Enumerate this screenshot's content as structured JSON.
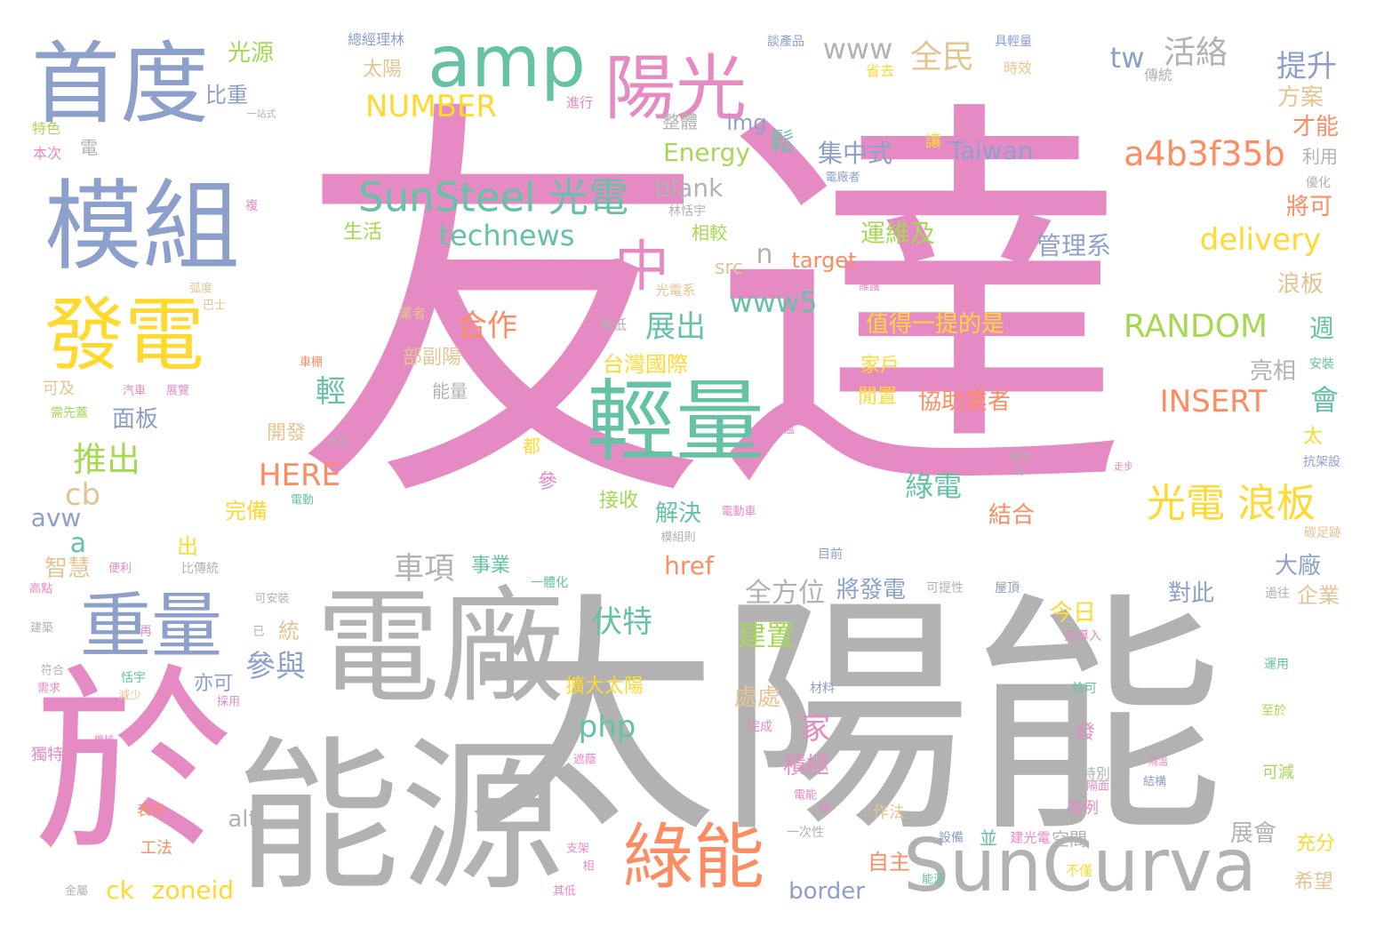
{
  "words": [
    {
      "text": "友達",
      "color": "#e68ac3",
      "orientation": "horizontal"
    },
    {
      "text": "太陽能",
      "color": "#b2b2b2",
      "orientation": "horizontal"
    },
    {
      "text": "能源",
      "color": "#b2b2b2",
      "orientation": "horizontal"
    },
    {
      "text": "電廠",
      "color": "#b2b2b2",
      "orientation": "horizontal"
    },
    {
      "text": "於",
      "color": "#e68ac3",
      "orientation": "horizontal"
    },
    {
      "text": "首度",
      "color": "#8da0cb",
      "orientation": "horizontal"
    },
    {
      "text": "模組",
      "color": "#8da0cb",
      "orientation": "horizontal"
    },
    {
      "text": "amp",
      "color": "#66c2a5",
      "orientation": "horizontal"
    },
    {
      "text": "輕量",
      "color": "#66c2a5",
      "orientation": "horizontal"
    },
    {
      "text": "陽光",
      "color": "#e68ac3",
      "orientation": "horizontal"
    },
    {
      "text": "SunCurva",
      "color": "#b2b2b2",
      "orientation": "horizontal"
    },
    {
      "text": "發電",
      "color": "#ffd92f",
      "orientation": "horizontal"
    },
    {
      "text": "重量",
      "color": "#8da0cb",
      "orientation": "horizontal"
    },
    {
      "text": "綠能",
      "color": "#fc8d62",
      "orientation": "horizontal"
    },
    {
      "text": "中",
      "color": "#e68ac3",
      "orientation": "horizontal"
    },
    {
      "text": "SunSteel 光電",
      "color": "#66c2a5",
      "orientation": "horizontal"
    },
    {
      "text": "a4b3f35b",
      "color": "#fc8d62",
      "orientation": "horizontal"
    },
    {
      "text": "光電 浪板",
      "color": "#ffd92f",
      "orientation": "horizontal"
    },
    {
      "text": "RANDOM",
      "color": "#a6d854",
      "orientation": "horizontal"
    },
    {
      "text": "INSERT",
      "color": "#fc8d62",
      "orientation": "horizontal"
    },
    {
      "text": "NUMBER",
      "color": "#ffd92f",
      "orientation": "horizontal"
    },
    {
      "text": "technews",
      "color": "#66c2a5",
      "orientation": "horizontal"
    },
    {
      "text": "delivery",
      "color": "#ffd92f",
      "orientation": "horizontal"
    },
    {
      "text": "www5",
      "color": "#66c2a5",
      "orientation": "horizontal"
    },
    {
      "text": "www",
      "color": "#b2b2b2",
      "orientation": "horizontal"
    },
    {
      "text": "全民",
      "color": "#e5c494",
      "orientation": "horizontal"
    },
    {
      "text": "活絡",
      "color": "#b2b2b2",
      "orientation": "horizontal"
    },
    {
      "text": "提升",
      "color": "#8da0cb",
      "orientation": "horizontal"
    },
    {
      "text": "tw",
      "color": "#8da0cb",
      "orientation": "horizontal"
    },
    {
      "text": "方案",
      "color": "#e5c494",
      "orientation": "horizontal"
    },
    {
      "text": "Taiwan",
      "color": "#8da0cb",
      "orientation": "horizontal"
    },
    {
      "text": "集中式",
      "color": "#8da0cb",
      "orientation": "horizontal"
    },
    {
      "text": "Energy",
      "color": "#a6d854",
      "orientation": "horizontal"
    },
    {
      "text": "img",
      "color": "#8da0cb",
      "orientation": "horizontal"
    },
    {
      "text": "blank",
      "color": "#b2b2b2",
      "orientation": "horizontal"
    },
    {
      "text": "才能",
      "color": "#fc8d62",
      "orientation": "horizontal"
    },
    {
      "text": "利用",
      "color": "#b2b2b2",
      "orientation": "horizontal"
    },
    {
      "text": "將可",
      "color": "#fc8d62",
      "orientation": "horizontal"
    },
    {
      "text": "運維及",
      "color": "#a6d854",
      "orientation": "horizontal"
    },
    {
      "text": "管理系",
      "color": "#8da0cb",
      "orientation": "horizontal"
    },
    {
      "text": "target",
      "color": "#fc8d62",
      "orientation": "horizontal"
    },
    {
      "text": "浪板",
      "color": "#e5c494",
      "orientation": "horizontal"
    },
    {
      "text": "值得一提的是",
      "color": "#ffd92f",
      "orientation": "horizontal"
    },
    {
      "text": "週",
      "color": "#66c2a5",
      "orientation": "horizontal"
    },
    {
      "text": "亮相",
      "color": "#b2b2b2",
      "orientation": "horizontal"
    },
    {
      "text": "會",
      "color": "#66c2a5",
      "orientation": "horizontal"
    },
    {
      "text": "協助業者",
      "color": "#fc8d62",
      "orientation": "horizontal"
    },
    {
      "text": "家戶",
      "color": "#ffd92f",
      "orientation": "horizontal"
    },
    {
      "text": "閒置",
      "color": "#ffd92f",
      "orientation": "horizontal"
    },
    {
      "text": "太",
      "color": "#ffd92f",
      "orientation": "horizontal"
    },
    {
      "text": "綠電",
      "color": "#66c2a5",
      "orientation": "horizontal"
    },
    {
      "text": "結合",
      "color": "#fc8d62",
      "orientation": "horizontal"
    },
    {
      "text": "大廠",
      "color": "#8da0cb",
      "orientation": "horizontal"
    },
    {
      "text": "對此",
      "color": "#8da0cb",
      "orientation": "horizontal"
    },
    {
      "text": "今日",
      "color": "#ffd92f",
      "orientation": "horizontal"
    },
    {
      "text": "企業",
      "color": "#e5c494",
      "orientation": "horizontal"
    },
    {
      "text": "建置",
      "color": "#a6d854",
      "orientation": "horizontal"
    },
    {
      "text": "全方位",
      "color": "#b2b2b2",
      "orientation": "horizontal"
    },
    {
      "text": "將發電",
      "color": "#8da0cb",
      "orientation": "horizontal"
    },
    {
      "text": "伏特",
      "color": "#66c2a5",
      "orientation": "horizontal"
    },
    {
      "text": "處處",
      "color": "#e5c494",
      "orientation": "horizontal"
    },
    {
      "text": "積極",
      "color": "#e68ac3",
      "orientation": "horizontal"
    },
    {
      "text": "家",
      "color": "#e68ac3",
      "orientation": "horizontal"
    },
    {
      "text": "php",
      "color": "#66c2a5",
      "orientation": "horizontal"
    },
    {
      "text": "車項",
      "color": "#b2b2b2",
      "orientation": "horizontal"
    },
    {
      "text": "事業",
      "color": "#66c2a5",
      "orientation": "horizontal"
    },
    {
      "text": "href",
      "color": "#fc8d62",
      "orientation": "horizontal"
    },
    {
      "text": "解決",
      "color": "#66c2a5",
      "orientation": "horizontal"
    },
    {
      "text": "展出",
      "color": "#66c2a5",
      "orientation": "horizontal"
    },
    {
      "text": "台灣國際",
      "color": "#ffd92f",
      "orientation": "horizontal"
    },
    {
      "text": "合作",
      "color": "#fc8d62",
      "orientation": "horizontal"
    },
    {
      "text": "部副陽",
      "color": "#e5c494",
      "orientation": "horizontal"
    },
    {
      "text": "能量",
      "color": "#b2b2b2",
      "orientation": "horizontal"
    },
    {
      "text": "輕",
      "color": "#66c2a5",
      "orientation": "horizontal"
    },
    {
      "text": "鬆",
      "color": "#66c2a5",
      "orientation": "horizontal"
    },
    {
      "text": "參與",
      "color": "#8da0cb",
      "orientation": "horizontal"
    },
    {
      "text": "推出",
      "color": "#a6d854",
      "orientation": "horizontal"
    },
    {
      "text": "面板",
      "color": "#8da0cb",
      "orientation": "horizontal"
    },
    {
      "text": "HERE",
      "color": "#fc8d62",
      "orientation": "horizontal"
    },
    {
      "text": "完備",
      "color": "#ffd92f",
      "orientation": "horizontal"
    },
    {
      "text": "開發",
      "color": "#e5c494",
      "orientation": "horizontal"
    },
    {
      "text": "cb",
      "color": "#e5c494",
      "orientation": "horizontal"
    },
    {
      "text": "a",
      "color": "#66c2a5",
      "orientation": "horizontal"
    },
    {
      "text": "avw",
      "color": "#8da0cb",
      "orientation": "horizontal"
    },
    {
      "text": "智慧",
      "color": "#e5c494",
      "orientation": "horizontal"
    },
    {
      "text": "出",
      "color": "#ffd92f",
      "orientation": "horizontal"
    },
    {
      "text": "統",
      "color": "#e5c494",
      "orientation": "horizontal"
    },
    {
      "text": "亦可",
      "color": "#8da0cb",
      "orientation": "horizontal"
    },
    {
      "text": "alt",
      "color": "#b2b2b2",
      "orientation": "horizontal"
    },
    {
      "text": "ck",
      "color": "#ffd92f",
      "orientation": "horizontal"
    },
    {
      "text": "zoneid",
      "color": "#ffd92f",
      "orientation": "horizontal"
    },
    {
      "text": "border",
      "color": "#8da0cb",
      "orientation": "horizontal"
    },
    {
      "text": "自主",
      "color": "#fc8d62",
      "orientation": "horizontal"
    },
    {
      "text": "展會",
      "color": "#b2b2b2",
      "orientation": "horizontal"
    },
    {
      "text": "充分",
      "color": "#ffd92f",
      "orientation": "horizontal"
    },
    {
      "text": "希望",
      "color": "#e5c494",
      "orientation": "horizontal"
    },
    {
      "text": "空間",
      "color": "#b2b2b2",
      "orientation": "horizontal"
    },
    {
      "text": "並",
      "color": "#66c2a5",
      "orientation": "horizontal"
    },
    {
      "text": "擴大太陽",
      "color": "#ffd92f",
      "orientation": "horizontal"
    },
    {
      "text": "接收",
      "color": "#a6d854",
      "orientation": "horizontal"
    },
    {
      "text": "光源",
      "color": "#a6d854",
      "orientation": "horizontal"
    },
    {
      "text": "比重",
      "color": "#8da0cb",
      "orientation": "horizontal"
    },
    {
      "text": "電",
      "color": "#b2b2b2",
      "orientation": "horizontal"
    },
    {
      "text": "生活",
      "color": "#a6d854",
      "orientation": "horizontal"
    },
    {
      "text": "太陽",
      "color": "#e5c494",
      "orientation": "horizontal"
    },
    {
      "text": "相較",
      "color": "#a6d854",
      "orientation": "horizontal"
    },
    {
      "text": "src",
      "color": "#e5c494",
      "orientation": "horizontal"
    },
    {
      "text": "n",
      "color": "#b2b2b2",
      "orientation": "horizontal"
    },
    {
      "text": "整體",
      "color": "#b2b2b2",
      "orientation": "horizontal"
    },
    {
      "text": "為例",
      "color": "#e68ac3",
      "orientation": "horizontal"
    },
    {
      "text": "作法",
      "color": "#e5c494",
      "orientation": "horizontal"
    },
    {
      "text": "發",
      "color": "#e68ac3",
      "orientation": "horizontal"
    },
    {
      "text": "參",
      "color": "#e68ac3",
      "orientation": "horizontal"
    },
    {
      "text": "都",
      "color": "#ffd92f",
      "orientation": "horizontal"
    },
    {
      "text": "可及",
      "color": "#e5c494",
      "orientation": "horizontal"
    },
    {
      "text": "讓",
      "color": "#ffd92f",
      "orientation": "horizontal"
    },
    {
      "text": "可減",
      "color": "#a6d854",
      "orientation": "horizontal"
    },
    {
      "text": "工法",
      "color": "#fc8d62",
      "orientation": "horizontal"
    },
    {
      "text": "表示",
      "color": "#fc8d62",
      "orientation": "horizontal"
    },
    {
      "text": "獨特",
      "color": "#e68ac3",
      "orientation": "horizontal"
    },
    {
      "text": "特別",
      "color": "#b2b2b2",
      "orientation": "horizontal"
    },
    {
      "text": "本次",
      "color": "#e68ac3",
      "orientation": "horizontal"
    },
    {
      "text": "特色",
      "color": "#a6d854",
      "orientation": "horizontal"
    },
    {
      "text": "省去",
      "color": "#ffd92f",
      "orientation": "horizontal"
    },
    {
      "text": "時效",
      "color": "#e5c494",
      "orientation": "horizontal"
    },
    {
      "text": "傳統",
      "color": "#b2b2b2",
      "orientation": "horizontal"
    },
    {
      "text": "進行",
      "color": "#e68ac3",
      "orientation": "horizontal"
    },
    {
      "text": "談產品",
      "color": "#8da0cb",
      "orientation": "horizontal"
    },
    {
      "text": "具輕量",
      "color": "#8da0cb",
      "orientation": "horizontal"
    },
    {
      "text": "總經理林",
      "color": "#8da0cb",
      "orientation": "horizontal"
    },
    {
      "text": "林恬宇",
      "color": "#b2b2b2",
      "orientation": "horizontal"
    },
    {
      "text": "優化",
      "color": "#b2b2b2",
      "orientation": "horizontal"
    },
    {
      "text": "降低",
      "color": "#b2b2b2",
      "orientation": "horizontal"
    },
    {
      "text": "業者",
      "color": "#e5c494",
      "orientation": "horizontal"
    },
    {
      "text": "光電系",
      "color": "#e5c494",
      "orientation": "horizontal"
    },
    {
      "text": "安裝",
      "color": "#66c2a5",
      "orientation": "horizontal"
    },
    {
      "text": "抗架設",
      "color": "#8da0cb",
      "orientation": "horizontal"
    },
    {
      "text": "碳足跡",
      "color": "#e5c494",
      "orientation": "horizontal"
    },
    {
      "text": "目前",
      "color": "#8da0cb",
      "orientation": "horizontal"
    },
    {
      "text": "屋頂",
      "color": "#8da0cb",
      "orientation": "horizontal"
    },
    {
      "text": "可提性",
      "color": "#b2b2b2",
      "orientation": "horizontal"
    },
    {
      "text": "過往",
      "color": "#b2b2b2",
      "orientation": "horizontal"
    },
    {
      "text": "先導入",
      "color": "#e68ac3",
      "orientation": "horizontal"
    },
    {
      "text": "運用",
      "color": "#66c2a5",
      "orientation": "horizontal"
    },
    {
      "text": "恰可",
      "color": "#66c2a5",
      "orientation": "horizontal"
    },
    {
      "text": "至於",
      "color": "#a6d854",
      "orientation": "horizontal"
    },
    {
      "text": "結構",
      "color": "#8da0cb",
      "orientation": "horizontal"
    },
    {
      "text": "建光電",
      "color": "#e68ac3",
      "orientation": "horizontal"
    },
    {
      "text": "不僅",
      "color": "#ffd92f",
      "orientation": "horizontal"
    },
    {
      "text": "設備",
      "color": "#8da0cb",
      "orientation": "horizontal"
    },
    {
      "text": "材料",
      "color": "#8da0cb",
      "orientation": "horizontal"
    },
    {
      "text": "完成",
      "color": "#e68ac3",
      "orientation": "horizontal"
    },
    {
      "text": "一次性",
      "color": "#b2b2b2",
      "orientation": "horizontal"
    },
    {
      "text": "模組則",
      "color": "#b2b2b2",
      "orientation": "horizontal"
    },
    {
      "text": "電動車",
      "color": "#e68ac3",
      "orientation": "horizontal"
    },
    {
      "text": "避免",
      "color": "#b2b2b2",
      "orientation": "horizontal"
    },
    {
      "text": "為",
      "color": "#b2b2b2",
      "orientation": "horizontal"
    },
    {
      "text": "一體化",
      "color": "#66c2a5",
      "orientation": "horizontal"
    },
    {
      "text": "電動",
      "color": "#66c2a5",
      "orientation": "horizontal"
    },
    {
      "text": "合性",
      "color": "#b2b2b2",
      "orientation": "horizontal"
    },
    {
      "text": "能源",
      "color": "#66c2a5",
      "orientation": "horizontal"
    },
    {
      "text": "汽車",
      "color": "#e68ac3",
      "orientation": "horizontal"
    },
    {
      "text": "展覽",
      "color": "#e68ac3",
      "orientation": "horizontal"
    },
    {
      "text": "車棚",
      "color": "#fc8d62",
      "orientation": "horizontal"
    },
    {
      "text": "需先蓋",
      "color": "#a6d854",
      "orientation": "horizontal"
    },
    {
      "text": "巴士",
      "color": "#e5c494",
      "orientation": "horizontal"
    },
    {
      "text": "弧度",
      "color": "#e5c494",
      "orientation": "horizontal"
    },
    {
      "text": "複",
      "color": "#e68ac3",
      "orientation": "horizontal"
    },
    {
      "text": "一站式",
      "color": "#b2b2b2",
      "orientation": "horizontal"
    },
    {
      "text": "便利",
      "color": "#e68ac3",
      "orientation": "horizontal"
    },
    {
      "text": "比傳統",
      "color": "#b2b2b2",
      "orientation": "horizontal"
    },
    {
      "text": "高點",
      "color": "#e68ac3",
      "orientation": "horizontal"
    },
    {
      "text": "可安裝",
      "color": "#b2b2b2",
      "orientation": "horizontal"
    },
    {
      "text": "建築",
      "color": "#b2b2b2",
      "orientation": "horizontal"
    },
    {
      "text": "再",
      "color": "#e68ac3",
      "orientation": "horizontal"
    },
    {
      "text": "已",
      "color": "#b2b2b2",
      "orientation": "horizontal"
    },
    {
      "text": "符合",
      "color": "#b2b2b2",
      "orientation": "horizontal"
    },
    {
      "text": "恬宇",
      "color": "#66c2a5",
      "orientation": "horizontal"
    },
    {
      "text": "需求",
      "color": "#e68ac3",
      "orientation": "horizontal"
    },
    {
      "text": "減少",
      "color": "#e5c494",
      "orientation": "horizontal"
    },
    {
      "text": "採用",
      "color": "#e68ac3",
      "orientation": "horizontal"
    },
    {
      "text": "機械",
      "color": "#e68ac3",
      "orientation": "horizontal"
    },
    {
      "text": "遮蔭",
      "color": "#e68ac3",
      "orientation": "horizontal"
    },
    {
      "text": "支架",
      "color": "#e68ac3",
      "orientation": "horizontal"
    },
    {
      "text": "相",
      "color": "#e68ac3",
      "orientation": "horizontal"
    },
    {
      "text": "其低",
      "color": "#e68ac3",
      "orientation": "horizontal"
    },
    {
      "text": "金屬",
      "color": "#b2b2b2",
      "orientation": "horizontal"
    },
    {
      "text": "電能",
      "color": "#e68ac3",
      "orientation": "horizontal"
    },
    {
      "text": "隔面",
      "color": "#e68ac3",
      "orientation": "horizontal"
    },
    {
      "text": "隔溫",
      "color": "#e68ac3",
      "orientation": "horizontal"
    },
    {
      "text": "電廠者",
      "color": "#8da0cb",
      "orientation": "horizontal"
    },
    {
      "text": "輕薄",
      "color": "#e68ac3",
      "orientation": "horizontal"
    },
    {
      "text": "維護",
      "color": "#e68ac3",
      "orientation": "horizontal"
    },
    {
      "text": "走步",
      "color": "#e68ac3",
      "orientation": "horizontal"
    },
    {
      "text": "類",
      "color": "#e68ac3",
      "orientation": "horizontal"
    },
    {
      "text": "溫",
      "color": "#e68ac3",
      "orientation": "horizontal"
    }
  ]
}
